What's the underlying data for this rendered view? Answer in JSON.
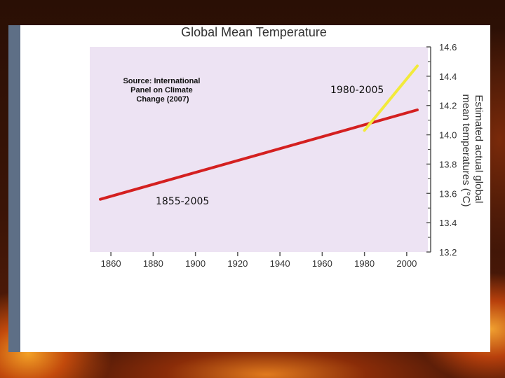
{
  "chart_data": {
    "type": "line",
    "title": "Global Mean Temperature",
    "ylabel": "Estimated actual global mean temperatures (°C)",
    "xlim": [
      1850,
      2010
    ],
    "ylim": [
      13.2,
      14.6
    ],
    "xticks": [
      "1860",
      "1880",
      "1900",
      "1920",
      "1940",
      "1960",
      "1980",
      "2000"
    ],
    "yticks": [
      "13.2",
      "13.4",
      "13.6",
      "13.8",
      "14.0",
      "14.2",
      "14.4",
      "14.6"
    ],
    "grid": false,
    "series": [
      {
        "name": "1855-2005",
        "color": "#d42020",
        "x": [
          1855,
          2005
        ],
        "y": [
          13.56,
          14.17
        ]
      },
      {
        "name": "1980-2005",
        "color": "#f2ea3a",
        "x": [
          1980,
          2005
        ],
        "y": [
          14.03,
          14.47
        ]
      }
    ],
    "annotations": {
      "source": [
        "Source: International",
        "Panel on Climate",
        "Change (2007)"
      ],
      "red_label": "1855-2005",
      "yellow_label": "1980-2005"
    },
    "colors": {
      "plot_bg": "#ede3f3",
      "panel_bg": "#ffffff",
      "axis": "#555555"
    }
  }
}
